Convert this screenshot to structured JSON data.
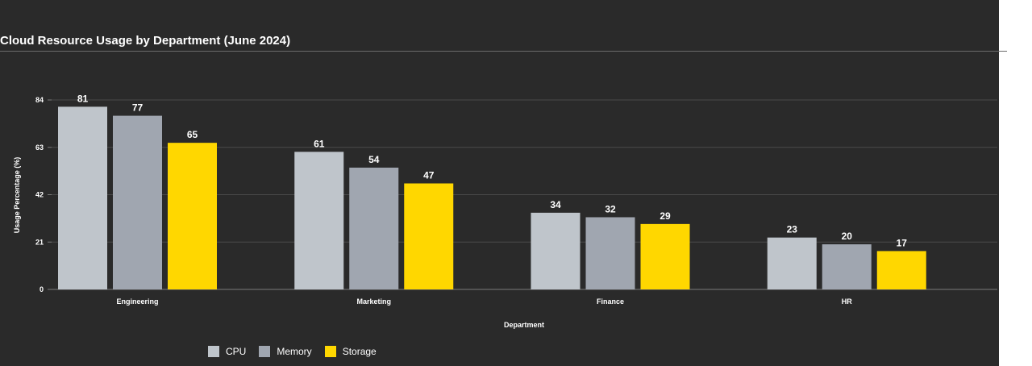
{
  "chart_data": {
    "type": "bar",
    "title": "Cloud Resource Usage by Department (June 2024)",
    "xlabel": "Department",
    "ylabel": "Usage Percentage (%)",
    "categories": [
      "Engineering",
      "Marketing",
      "Finance",
      "HR"
    ],
    "series": [
      {
        "name": "CPU",
        "color": "#bfc5cb",
        "values": [
          81,
          61,
          34,
          23
        ]
      },
      {
        "name": "Memory",
        "color": "#a0a6b0",
        "values": [
          77,
          54,
          32,
          20
        ]
      },
      {
        "name": "Storage",
        "color": "#ffd700",
        "values": [
          65,
          47,
          29,
          17
        ]
      }
    ],
    "ylim": [
      0,
      84
    ],
    "yticks": [
      "0",
      "21",
      "42",
      "63",
      "84"
    ],
    "grid": true,
    "legend_position": "bottom-left"
  }
}
